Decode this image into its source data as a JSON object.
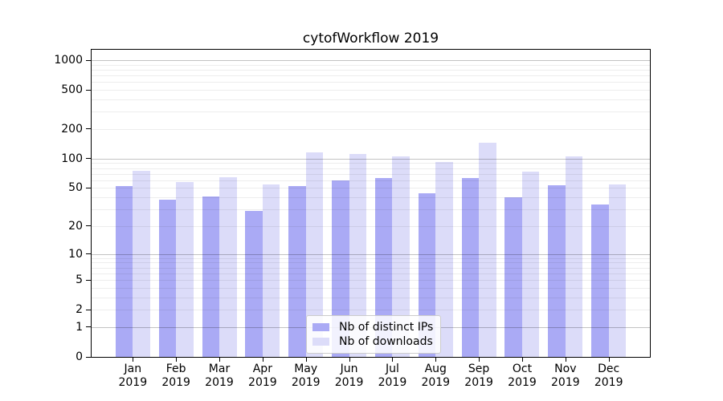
{
  "chart_data": {
    "type": "bar",
    "title": "cytofWorkflow 2019",
    "categories": [
      "Jan",
      "Feb",
      "Mar",
      "Apr",
      "May",
      "Jun",
      "Jul",
      "Aug",
      "Sep",
      "Oct",
      "Nov",
      "Dec"
    ],
    "year": "2019",
    "series": [
      {
        "name": "Nb of distinct IPs",
        "color": "#aaaaf5",
        "values": [
          52,
          38,
          41,
          29,
          52,
          60,
          63,
          44,
          63,
          40,
          53,
          34
        ]
      },
      {
        "name": "Nb of downloads",
        "color": "#dcdcf9",
        "values": [
          75,
          58,
          64,
          54,
          117,
          112,
          105,
          93,
          144,
          74,
          105,
          54
        ]
      }
    ],
    "y_scale": "log1p",
    "y_ticks": [
      0,
      1,
      2,
      5,
      10,
      20,
      50,
      100,
      200,
      500,
      1000
    ],
    "y_major_gridlines": [
      1,
      10,
      100,
      1000
    ],
    "ylim": [
      0,
      1000
    ],
    "grid": true,
    "legend_position": "lower center-left inside plot",
    "colors": {
      "background": "#ffffff",
      "axis": "#000000",
      "grid_major": "rgba(0,0,0,0.24)",
      "grid_minor": "rgba(0,0,0,0.07)",
      "legend_border": "#cccccc"
    }
  }
}
